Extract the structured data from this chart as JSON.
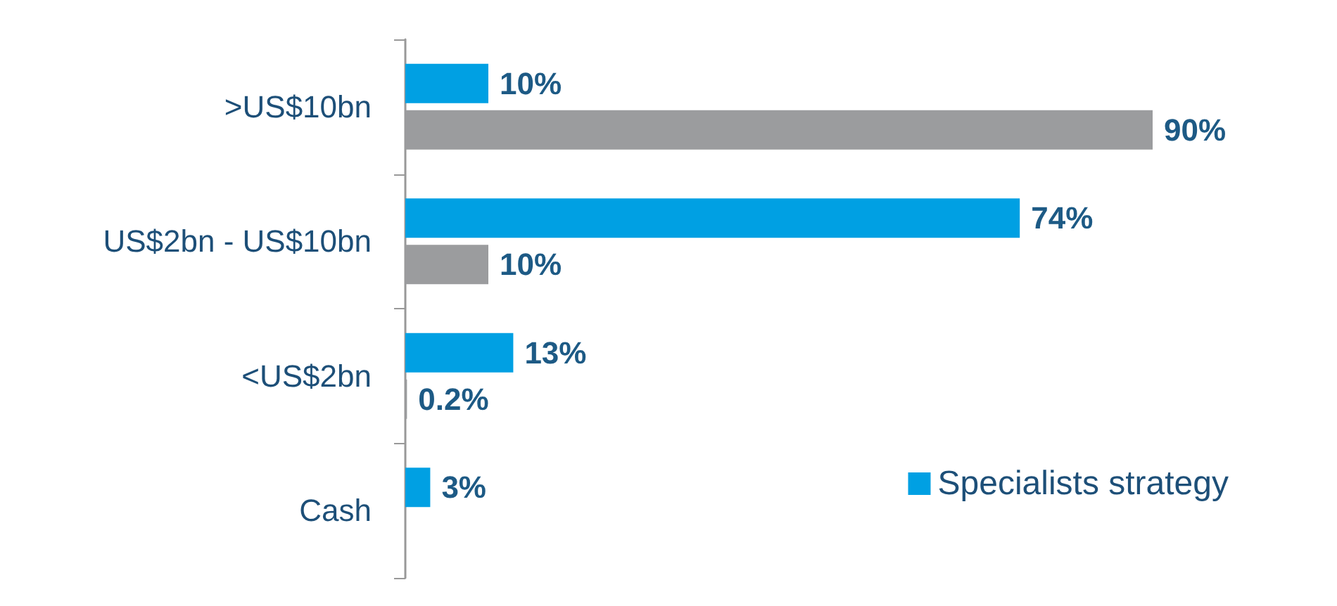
{
  "chart_data": {
    "type": "bar",
    "orientation": "horizontal",
    "categories": [
      ">US$10bn",
      "US$2bn - US$10bn",
      "<US$2bn",
      "Cash"
    ],
    "series": [
      {
        "name": "Specialists strategy",
        "color": "#00a0e3",
        "values": [
          10,
          74,
          13,
          3
        ],
        "value_labels": [
          "10%",
          "74%",
          "13%",
          "3%"
        ]
      },
      {
        "color": "#9b9c9e",
        "values": [
          90,
          10,
          0.2,
          null
        ],
        "value_labels": [
          "90%",
          "10%",
          "0.2%",
          null
        ]
      }
    ],
    "tick_labels": "y",
    "grid": false,
    "legend": "bottom right"
  }
}
